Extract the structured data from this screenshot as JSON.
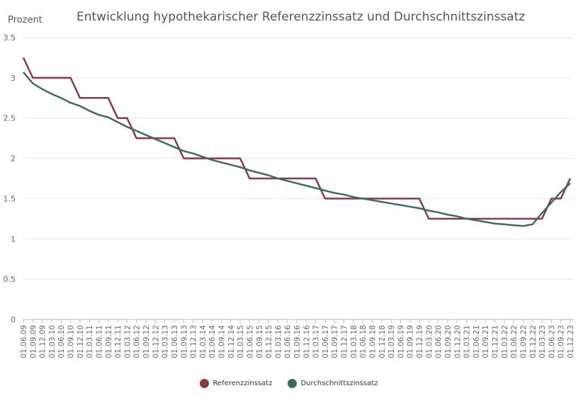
{
  "chart_data": {
    "type": "line",
    "title": "Entwicklung hypothekarischer Referenzzinssatz und Durchschnittszinssatz",
    "ylabel": "Prozent",
    "xlabel": "",
    "ylim": [
      0,
      3.5
    ],
    "yticks": [
      "0",
      "0.5",
      "1",
      "1.5",
      "2",
      "2.5",
      "3",
      "3.5"
    ],
    "grid": true,
    "legend": "bottom",
    "x": [
      "01.06.09",
      "01.09.09",
      "01.12.09",
      "01.03.10",
      "01.06.10",
      "01.09.10",
      "01.12.10",
      "01.03.11",
      "01.06.11",
      "01.09.11",
      "01.12.11",
      "01.03.12",
      "01.06.12",
      "01.09.12",
      "01.12.12",
      "01.03.13",
      "01.06.13",
      "01.09.13",
      "01.12.13",
      "01.03.14",
      "01.06.14",
      "01.09.14",
      "01.12.14",
      "01.03.15",
      "01.06.15",
      "01.09.15",
      "01.12.15",
      "01.03.16",
      "01.06.16",
      "01.09.16",
      "01.12.16",
      "01.03.17",
      "01.06.17",
      "01.09.17",
      "01.12.17",
      "01.03.18",
      "01.06.18",
      "01.09.18",
      "01.12.18",
      "01.03.19",
      "01.06.19",
      "01.09.19",
      "01.12.19",
      "01.03.20",
      "01.06.20",
      "01.09.20",
      "01.12.20",
      "01.03.21",
      "01.06.21",
      "01.09.21",
      "01.12.21",
      "01.03.22",
      "01.06.22",
      "01.09.22",
      "01.12.22",
      "01.03.23",
      "01.06.23",
      "01.09.23",
      "01.12.23"
    ],
    "series": [
      {
        "name": "Referenzzinssatz",
        "color": "#8b3a44",
        "values": [
          3.25,
          3,
          3,
          3,
          3,
          3,
          2.75,
          2.75,
          2.75,
          2.75,
          2.5,
          2.5,
          2.25,
          2.25,
          2.25,
          2.25,
          2.25,
          2,
          2,
          2,
          2,
          2,
          2,
          2,
          1.75,
          1.75,
          1.75,
          1.75,
          1.75,
          1.75,
          1.75,
          1.75,
          1.5,
          1.5,
          1.5,
          1.5,
          1.5,
          1.5,
          1.5,
          1.5,
          1.5,
          1.5,
          1.5,
          1.25,
          1.25,
          1.25,
          1.25,
          1.25,
          1.25,
          1.25,
          1.25,
          1.25,
          1.25,
          1.25,
          1.25,
          1.25,
          1.5,
          1.5,
          1.75
        ]
      },
      {
        "name": "Durchschnittszinssatz",
        "color": "#3d6b63",
        "values": [
          3.07,
          2.93,
          2.86,
          2.8,
          2.75,
          2.69,
          2.65,
          2.59,
          2.54,
          2.51,
          2.45,
          2.39,
          2.34,
          2.29,
          2.24,
          2.19,
          2.14,
          2.09,
          2.06,
          2.02,
          1.98,
          1.95,
          1.92,
          1.89,
          1.85,
          1.82,
          1.79,
          1.75,
          1.72,
          1.69,
          1.66,
          1.63,
          1.6,
          1.57,
          1.55,
          1.52,
          1.5,
          1.48,
          1.46,
          1.44,
          1.42,
          1.4,
          1.38,
          1.35,
          1.33,
          1.3,
          1.28,
          1.25,
          1.23,
          1.21,
          1.19,
          1.18,
          1.17,
          1.16,
          1.18,
          1.32,
          1.45,
          1.58,
          1.69
        ]
      }
    ]
  }
}
